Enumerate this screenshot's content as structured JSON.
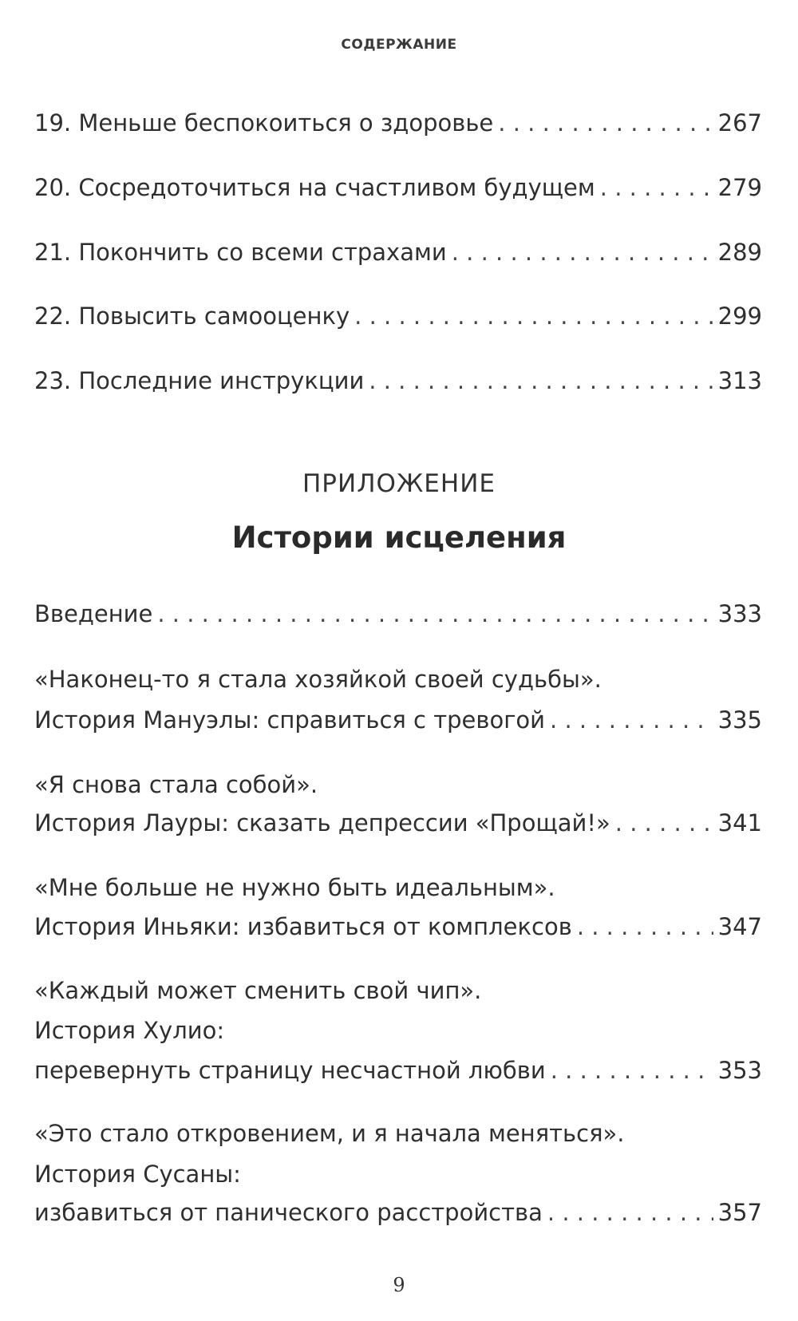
{
  "header": "СОДЕРЖАНИЕ",
  "entries": [
    {
      "title": "19. Меньше беспокоиться о здоровье",
      "page": "267"
    },
    {
      "title": "20. Сосредоточиться на счастливом будущем",
      "page": "279"
    },
    {
      "title": "21. Покончить со всеми страхами",
      "page": "289"
    },
    {
      "title": "22. Повысить самооценку",
      "page": "299"
    },
    {
      "title": "23. Последние инструкции",
      "page": "313"
    }
  ],
  "appendix": {
    "label": "ПРИЛОЖЕНИЕ",
    "title": "Истории исцеления",
    "intro": {
      "title": "Введение",
      "page": "333"
    },
    "stories": [
      {
        "lines": [
          "«Наконец-то я стала хозяйкой своей судьбы».",
          "История Мануэлы: справиться с тревогой"
        ],
        "page": "335"
      },
      {
        "lines": [
          "«Я снова стала собой».",
          "История Лауры: сказать депрессии «Прощай!»"
        ],
        "page": "341"
      },
      {
        "lines": [
          "«Мне больше не нужно быть идеальным».",
          "История Иньяки: избавиться от комплексов"
        ],
        "page": "347"
      },
      {
        "lines": [
          "«Каждый может сменить свой чип».",
          "История Хулио:",
          "перевернуть страницу несчастной любви"
        ],
        "page": "353"
      },
      {
        "lines": [
          "«Это стало откровением, и я начала меняться».",
          "История Сусаны:",
          "избавиться от панического расстройства"
        ],
        "page": "357"
      }
    ]
  },
  "folio": "9"
}
